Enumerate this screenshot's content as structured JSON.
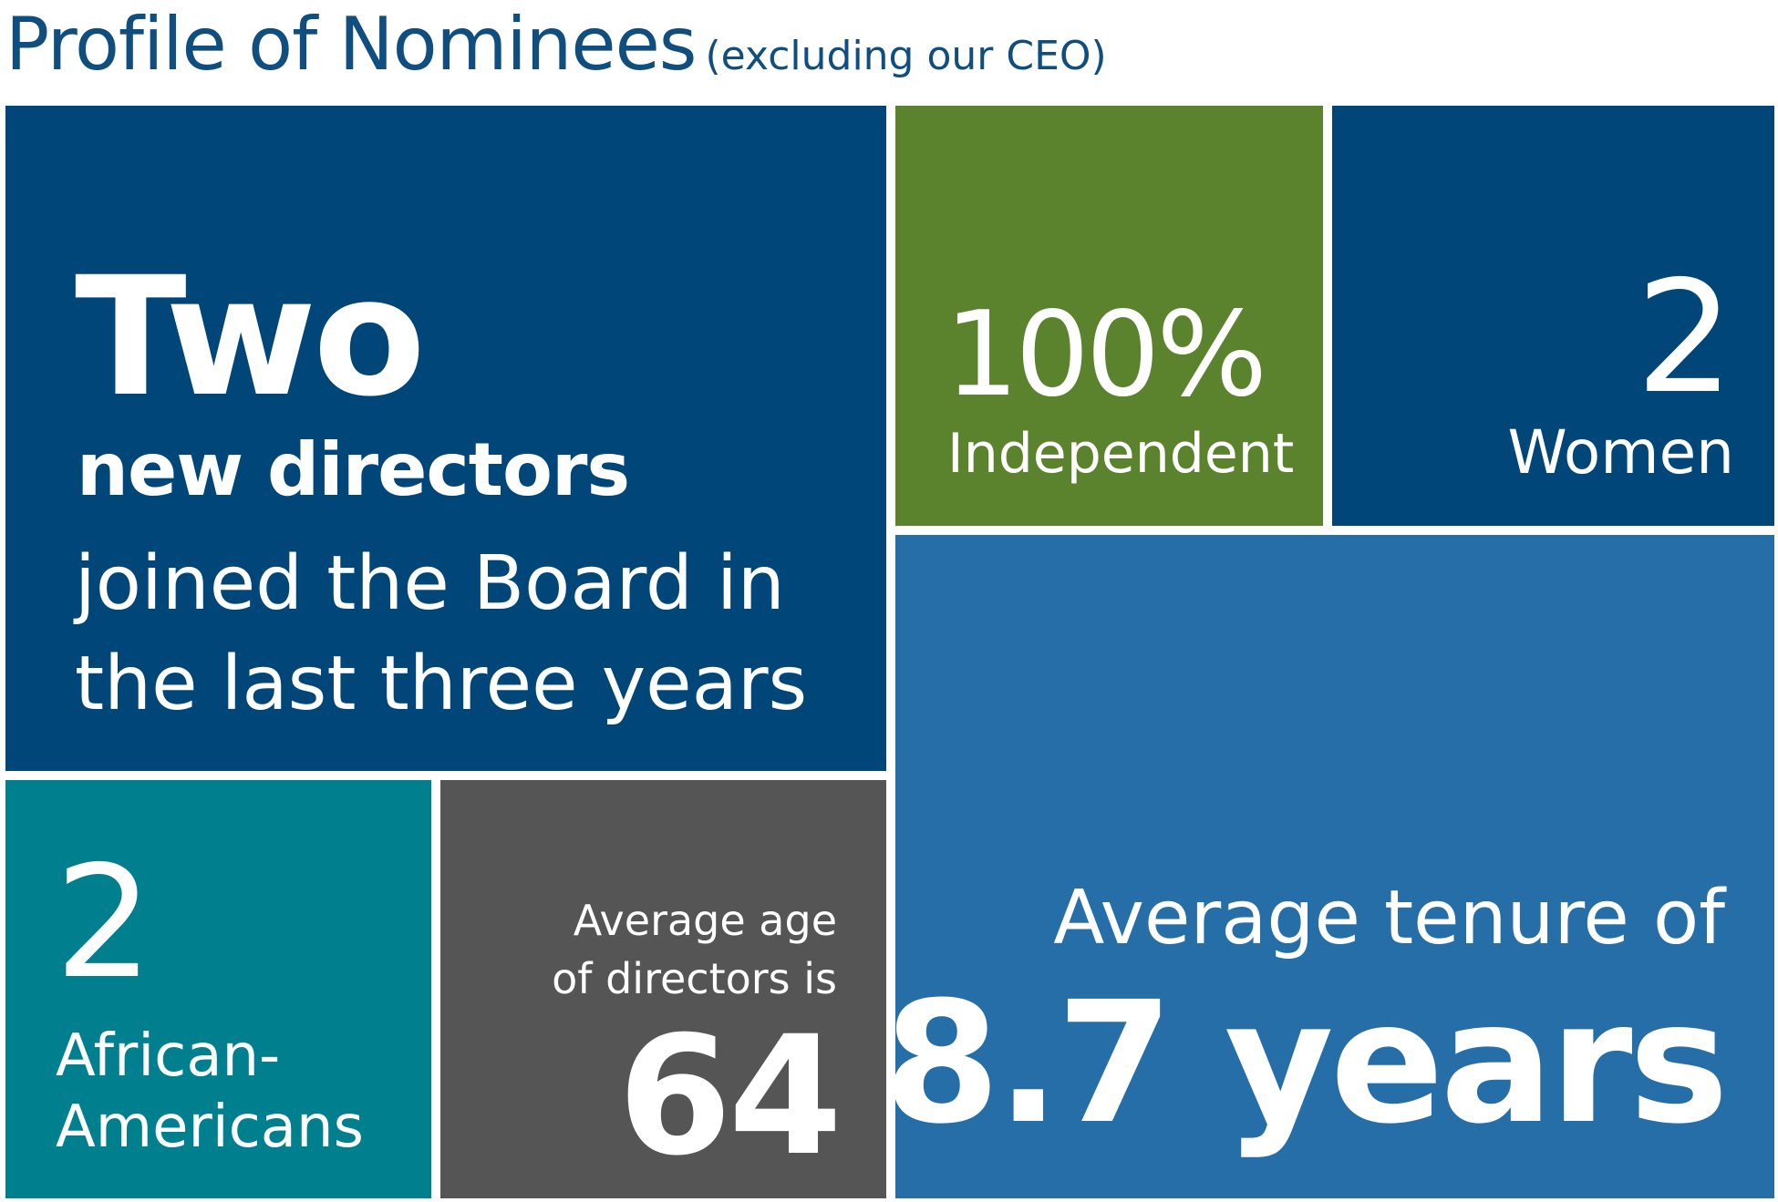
{
  "title": {
    "main": "Profile of Nominees",
    "sub": "(excluding our CEO)"
  },
  "tiles": {
    "new_directors": {
      "number": "Two",
      "emphasis": "new directors",
      "line1": "joined the Board in",
      "line2": "the last three years"
    },
    "independent": {
      "number": "100%",
      "label": "Independent"
    },
    "women": {
      "number": "2",
      "label": "Women"
    },
    "african_americans": {
      "number": "2",
      "label_line1": "African-",
      "label_line2": "Americans"
    },
    "average_age": {
      "label_line1": "Average age",
      "label_line2": "of directors is",
      "number": "64"
    },
    "average_tenure": {
      "label": "Average tenure of",
      "number": "8.7 years"
    }
  },
  "colors": {
    "dark_blue": "#004678",
    "green": "#5b822c",
    "teal": "#00808f",
    "gray": "#555555",
    "mid_blue": "#266ea8",
    "title": "#0f4e7e"
  }
}
